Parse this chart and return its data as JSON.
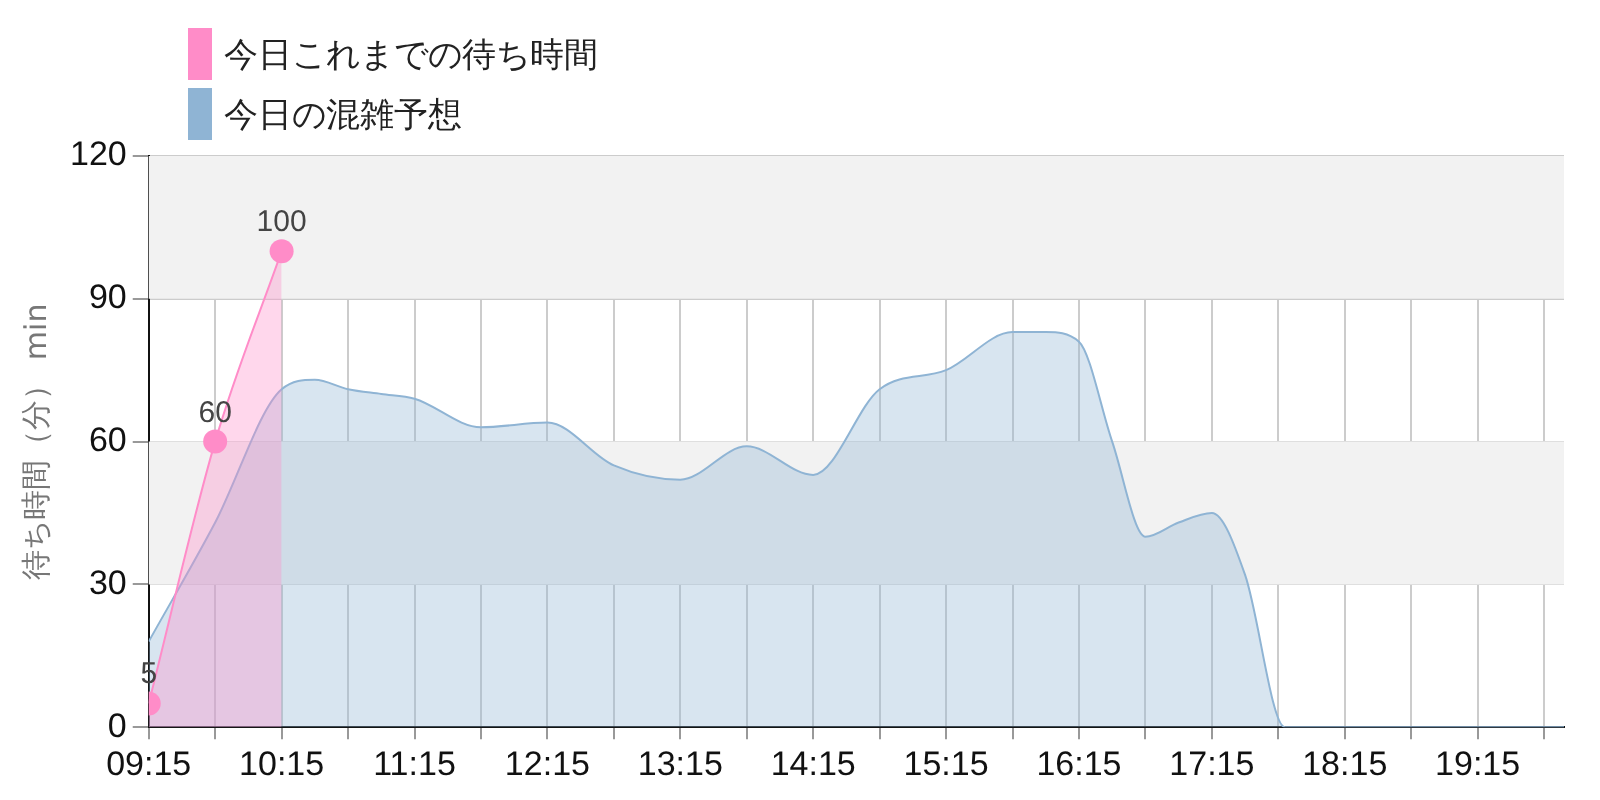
{
  "chart_data": {
    "type": "area",
    "ylabel": "待ち時間（分） min",
    "xlim": [
      9.25,
      19.9
    ],
    "xticks": [
      {
        "value": 9.25,
        "label": "09:15"
      },
      {
        "value": 9.75,
        "label": null
      },
      {
        "value": 10.25,
        "label": "10:15"
      },
      {
        "value": 10.75,
        "label": null
      },
      {
        "value": 11.25,
        "label": "11:15"
      },
      {
        "value": 11.75,
        "label": null
      },
      {
        "value": 12.25,
        "label": "12:15"
      },
      {
        "value": 12.75,
        "label": null
      },
      {
        "value": 13.25,
        "label": "13:15"
      },
      {
        "value": 13.75,
        "label": null
      },
      {
        "value": 14.25,
        "label": "14:15"
      },
      {
        "value": 14.75,
        "label": null
      },
      {
        "value": 15.25,
        "label": "15:15"
      },
      {
        "value": 15.75,
        "label": null
      },
      {
        "value": 16.25,
        "label": "16:15"
      },
      {
        "value": 16.75,
        "label": null
      },
      {
        "value": 17.25,
        "label": "17:15"
      },
      {
        "value": 17.75,
        "label": null
      },
      {
        "value": 18.25,
        "label": "18:15"
      },
      {
        "value": 18.75,
        "label": null
      },
      {
        "value": 19.25,
        "label": "19:15"
      },
      {
        "value": 19.75,
        "label": null
      }
    ],
    "ylim": [
      0,
      120
    ],
    "yticks": [
      0,
      30,
      60,
      90,
      120
    ],
    "grid": true,
    "legend": "top left",
    "bands": [
      {
        "axis": "y",
        "from": 30,
        "to": 60,
        "color": "#f2f2f2"
      },
      {
        "axis": "y",
        "from": 90,
        "to": 120,
        "color": "#f2f2f2"
      }
    ],
    "series": [
      {
        "name": "今日これまでの待ち時間",
        "color": "#ff8cc8",
        "marker": "circle",
        "data_labels": true,
        "x": [
          9.25,
          9.75,
          10.25
        ],
        "values": [
          5,
          60,
          100
        ]
      },
      {
        "name": "今日の混雑予想",
        "color": "#8fb4d4",
        "marker": "none",
        "x": [
          9.25,
          9.75,
          10.25,
          10.5,
          10.75,
          11.0,
          11.25,
          11.75,
          12.25,
          12.75,
          13.25,
          13.75,
          14.25,
          14.75,
          15.25,
          15.75,
          16.0,
          16.25,
          16.5,
          16.75,
          17.0,
          17.25,
          17.5,
          17.8,
          18.0,
          18.5,
          19.9
        ],
        "values": [
          18,
          43,
          71,
          73,
          71,
          70,
          69,
          63,
          64,
          55,
          52,
          59,
          53,
          71,
          75,
          83,
          83,
          81,
          60,
          40,
          43,
          45,
          32,
          0,
          0,
          0,
          0
        ]
      }
    ]
  }
}
